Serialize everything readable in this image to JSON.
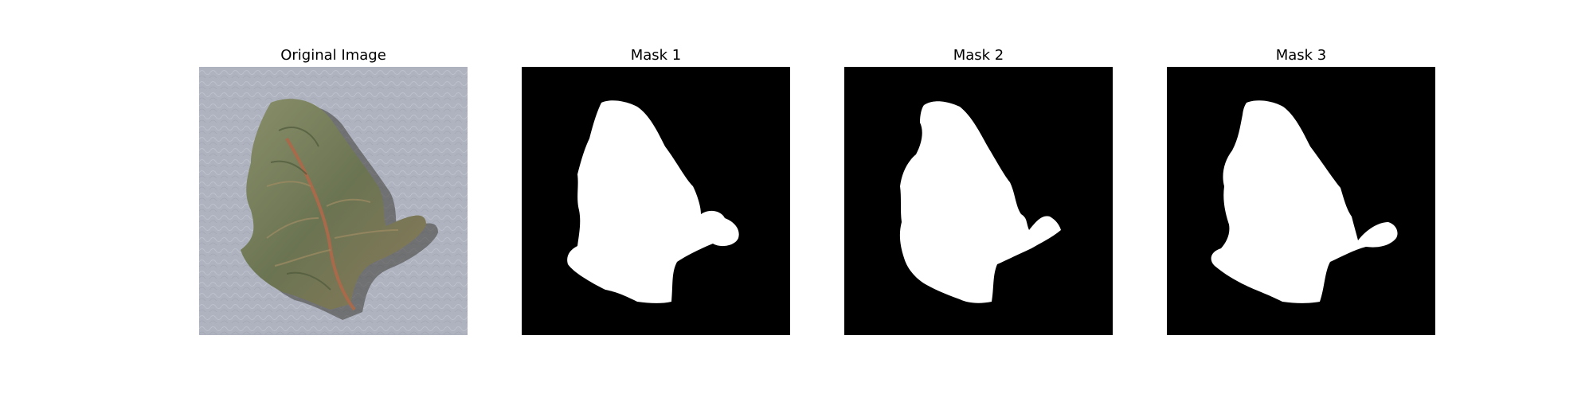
{
  "panels": [
    {
      "title": "Original Image",
      "kind": "photo",
      "subject": "dried-leaf-on-textured-gray-background"
    },
    {
      "title": "Mask 1",
      "kind": "mask"
    },
    {
      "title": "Mask 2",
      "kind": "mask"
    },
    {
      "title": "Mask 3",
      "kind": "mask"
    }
  ],
  "colors": {
    "background": "#ffffff",
    "mask_fg": "#ffffff",
    "mask_bg": "#000000",
    "photo_bg": "#aeb3bf",
    "leaf": "#6e7656"
  }
}
